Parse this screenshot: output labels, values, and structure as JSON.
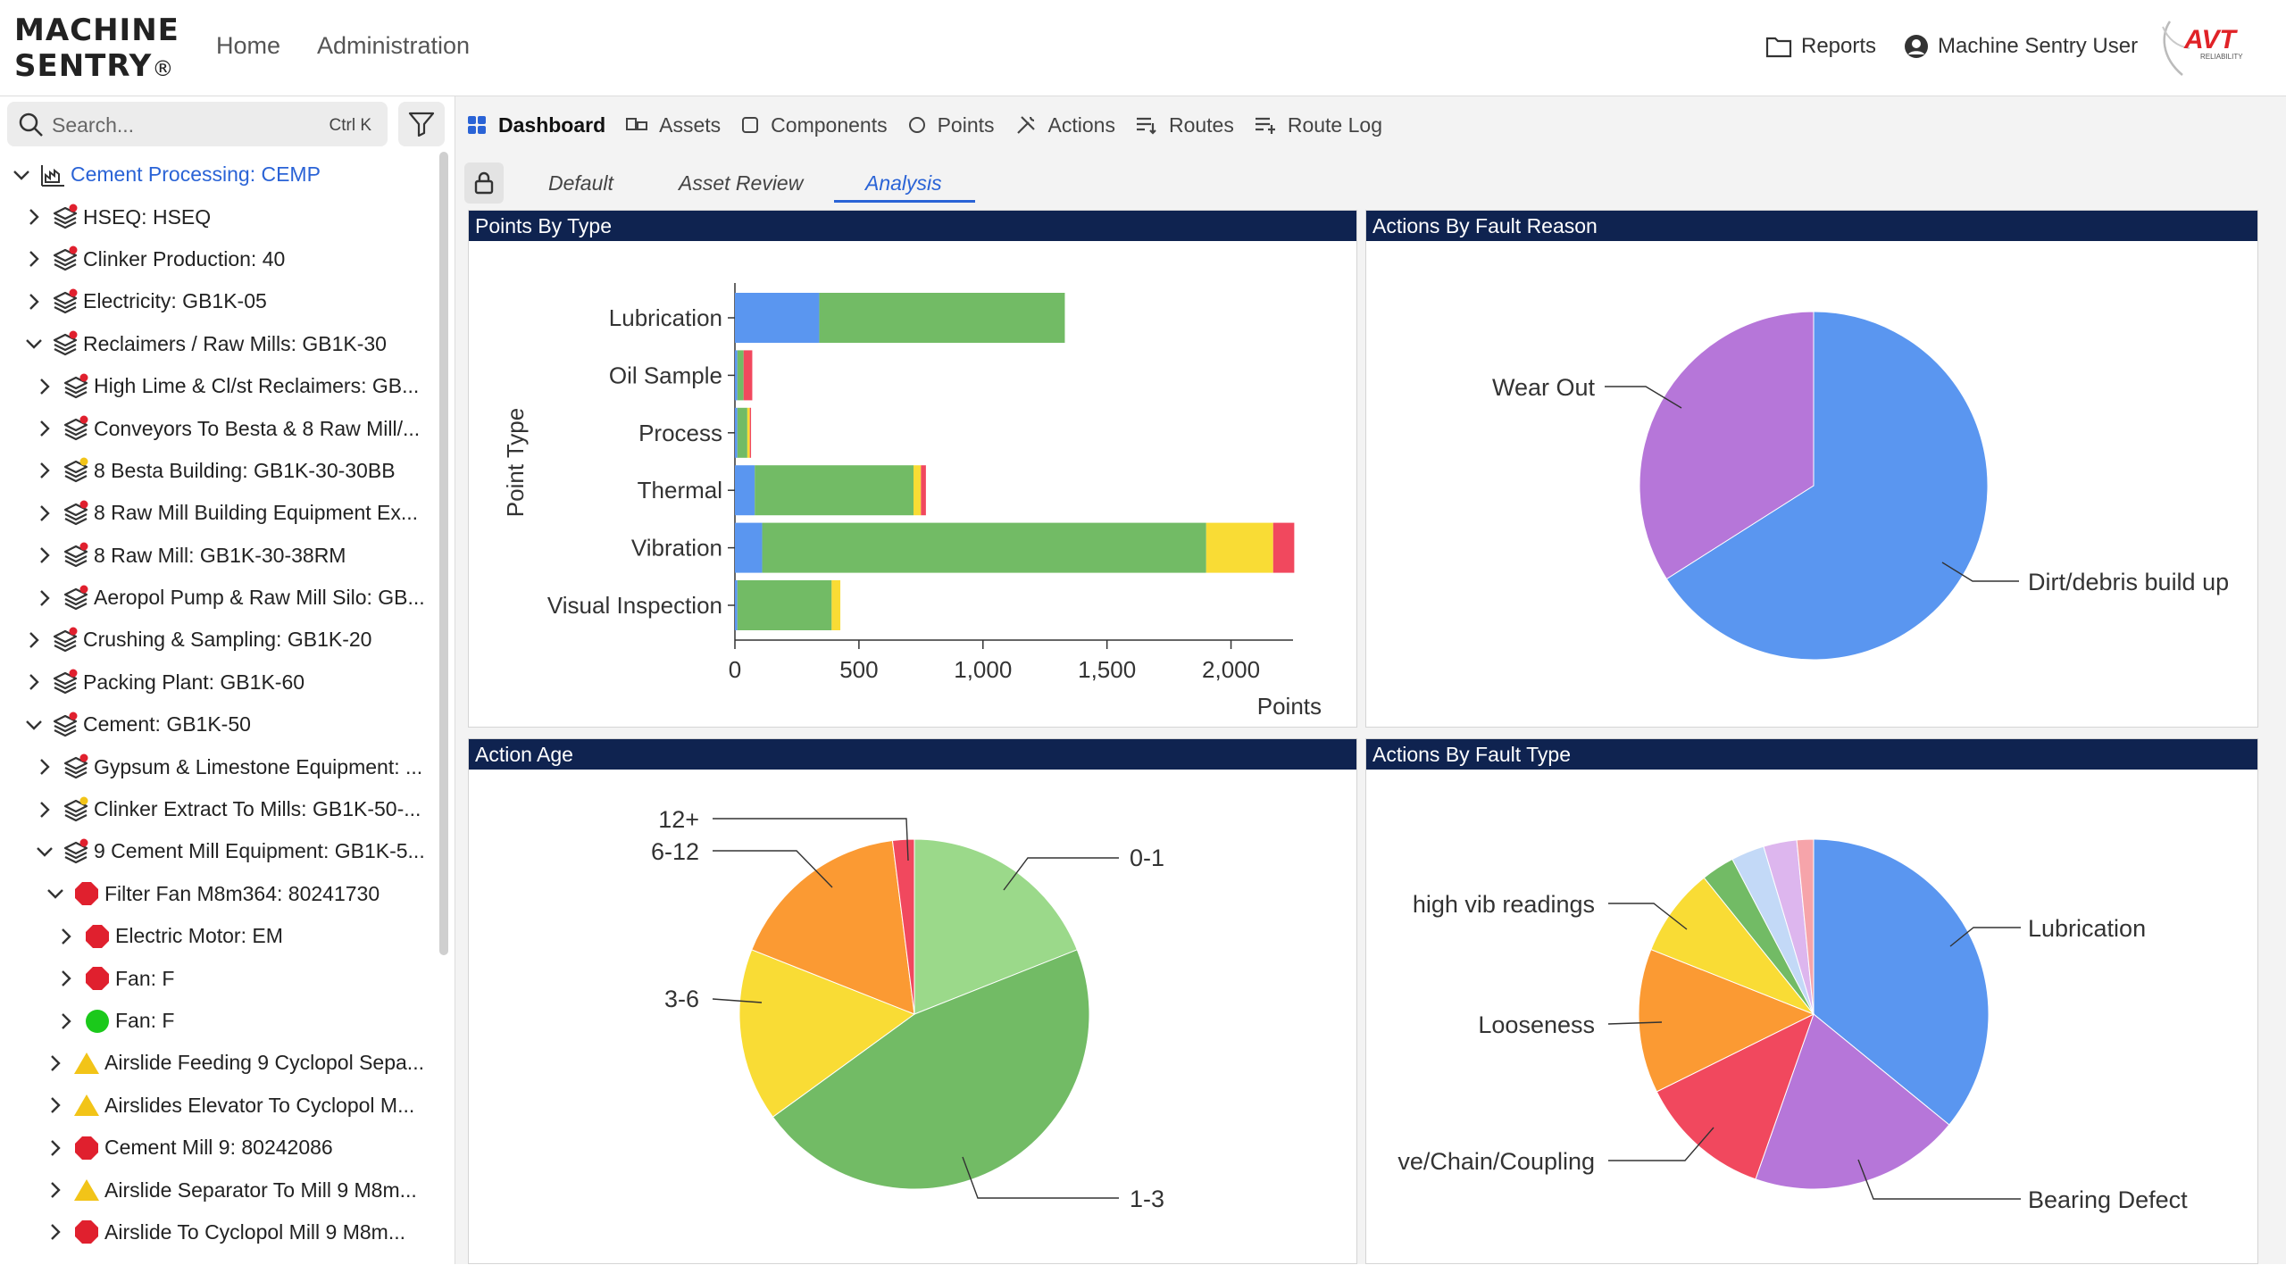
{
  "header": {
    "logo_line1": "MACHINE",
    "logo_line2": "SENTRY",
    "logo_reg": "®",
    "nav": [
      "Home",
      "Administration"
    ],
    "reports_label": "Reports",
    "user_label": "Machine Sentry User",
    "avt_logo": "AVT",
    "avt_sub": "RELIABILITY"
  },
  "sidebar": {
    "search_placeholder": "Search...",
    "search_shortcut": "Ctrl K",
    "tree": [
      {
        "label": "Cement Processing: CEMP",
        "level": 0,
        "expanded": true,
        "icon": "site-icon",
        "root": true
      },
      {
        "label": "HSEQ: HSEQ",
        "level": 1,
        "expanded": false,
        "icon": "layers-icon",
        "dot": "red"
      },
      {
        "label": "Clinker Production: 40",
        "level": 1,
        "expanded": false,
        "icon": "layers-icon",
        "dot": "red"
      },
      {
        "label": "Electricity: GB1K-05",
        "level": 1,
        "expanded": false,
        "icon": "layers-icon",
        "dot": "red"
      },
      {
        "label": "Reclaimers / Raw Mills: GB1K-30",
        "level": 1,
        "expanded": true,
        "icon": "layers-icon",
        "dot": "red"
      },
      {
        "label": "High Lime & Cl/st Reclaimers: GB...",
        "level": 2,
        "expanded": false,
        "icon": "layers-icon",
        "dot": "red"
      },
      {
        "label": "Conveyors To Besta & 8 Raw Mill/...",
        "level": 2,
        "expanded": false,
        "icon": "layers-icon",
        "dot": "red"
      },
      {
        "label": "8 Besta Building: GB1K-30-30BB",
        "level": 2,
        "expanded": false,
        "icon": "layers-icon",
        "dot": "yellow"
      },
      {
        "label": "8 Raw Mill Building Equipment Ex...",
        "level": 2,
        "expanded": false,
        "icon": "layers-icon",
        "dot": "red"
      },
      {
        "label": "8 Raw Mill: GB1K-30-38RM",
        "level": 2,
        "expanded": false,
        "icon": "layers-icon",
        "dot": "red"
      },
      {
        "label": "Aeropol Pump & Raw Mill Silo: GB...",
        "level": 2,
        "expanded": false,
        "icon": "layers-icon",
        "dot": "red"
      },
      {
        "label": "Crushing & Sampling: GB1K-20",
        "level": 1,
        "expanded": false,
        "icon": "layers-icon",
        "dot": "red"
      },
      {
        "label": "Packing Plant: GB1K-60",
        "level": 1,
        "expanded": false,
        "icon": "layers-icon",
        "dot": "red"
      },
      {
        "label": "Cement: GB1K-50",
        "level": 1,
        "expanded": true,
        "icon": "layers-icon",
        "dot": "red"
      },
      {
        "label": "Gypsum & Limestone Equipment: ...",
        "level": 2,
        "expanded": false,
        "icon": "layers-icon",
        "dot": "red"
      },
      {
        "label": "Clinker Extract To Mills: GB1K-50-...",
        "level": 2,
        "expanded": false,
        "icon": "layers-icon",
        "dot": "yellow"
      },
      {
        "label": "9 Cement Mill Equipment: GB1K-5...",
        "level": 2,
        "expanded": true,
        "icon": "layers-icon",
        "dot": "red"
      },
      {
        "label": "Filter Fan M8m364: 80241730",
        "level": 3,
        "expanded": true,
        "icon": "octagon-red-icon"
      },
      {
        "label": "Electric Motor: EM",
        "level": 4,
        "expanded": false,
        "icon": "octagon-red-icon"
      },
      {
        "label": "Fan: F",
        "level": 4,
        "expanded": false,
        "icon": "octagon-red-icon"
      },
      {
        "label": "Fan: F",
        "level": 4,
        "expanded": false,
        "icon": "circle-green-icon"
      },
      {
        "label": "Airslide Feeding 9 Cyclopol Sepa...",
        "level": 3,
        "expanded": false,
        "icon": "triangle-yellow-icon"
      },
      {
        "label": "Airslides Elevator To Cyclopol M...",
        "level": 3,
        "expanded": false,
        "icon": "triangle-yellow-icon"
      },
      {
        "label": "Cement Mill 9: 80242086",
        "level": 3,
        "expanded": false,
        "icon": "octagon-red-icon"
      },
      {
        "label": "Airslide Separator To Mill 9 M8m...",
        "level": 3,
        "expanded": false,
        "icon": "triangle-yellow-icon"
      },
      {
        "label": "Airslide To Cyclopol Mill 9 M8m...",
        "level": 3,
        "expanded": false,
        "icon": "octagon-red-icon"
      }
    ]
  },
  "tabs": [
    {
      "label": "Dashboard",
      "icon": "dashboard-icon",
      "active": true
    },
    {
      "label": "Assets",
      "icon": "assets-icon"
    },
    {
      "label": "Components",
      "icon": "components-icon"
    },
    {
      "label": "Points",
      "icon": "points-icon"
    },
    {
      "label": "Actions",
      "icon": "actions-icon"
    },
    {
      "label": "Routes",
      "icon": "routes-icon"
    },
    {
      "label": "Route Log",
      "icon": "route-log-icon"
    }
  ],
  "subtabs": [
    {
      "label": "Default"
    },
    {
      "label": "Asset Review"
    },
    {
      "label": "Analysis",
      "active": true
    }
  ],
  "colors": {
    "blue": "#5a96f0",
    "green": "#72bb65",
    "yellow": "#f9dc35",
    "red": "#f1485e",
    "purple": "#b676d9",
    "orange": "#fb9a33",
    "lightgreen": "#9bd98a",
    "lightblue": "#c3d9f7",
    "lavender": "#ddb6ee",
    "pink": "#f6a4aa",
    "navy": "#0f2350"
  },
  "panels": {
    "points_by_type": "Points By Type",
    "actions_by_fault_reason": "Actions By Fault Reason",
    "action_age": "Action Age",
    "actions_by_fault_type": "Actions By Fault Type"
  },
  "chart_data": [
    {
      "type": "bar",
      "orientation": "horizontal",
      "stacked": true,
      "xlabel": "Points",
      "ylabel": "Point Type",
      "categories": [
        "Lubrication",
        "Oil Sample",
        "Process",
        "Thermal",
        "Vibration",
        "Visual Inspection"
      ],
      "xlim": [
        0,
        2250
      ],
      "xticks": [
        0,
        500,
        1000,
        1500,
        2000
      ],
      "xtick_labels": [
        "0",
        "500",
        "1,000",
        "1,500",
        "2,000"
      ],
      "series": [
        {
          "values": [
            340,
            10,
            10,
            80,
            110,
            10
          ],
          "color": "#5a96f0"
        },
        {
          "values": [
            990,
            25,
            40,
            640,
            1790,
            380
          ],
          "color": "#72bb65"
        },
        {
          "values": [
            0,
            0,
            10,
            30,
            270,
            35
          ],
          "color": "#f9dc35"
        },
        {
          "values": [
            0,
            35,
            5,
            20,
            85,
            0
          ],
          "color": "#f1485e"
        }
      ]
    },
    {
      "type": "pie",
      "labels": [
        "Dirt/debris build up",
        "Wear Out"
      ],
      "values": [
        66,
        34
      ],
      "colors": [
        "#5a96f0",
        "#b676d9"
      ]
    },
    {
      "type": "pie",
      "labels": [
        "0-1",
        "1-3",
        "3-6",
        "6-12",
        "12+"
      ],
      "values": [
        19,
        46,
        16,
        17,
        2
      ],
      "colors": [
        "#9bd98a",
        "#72bb65",
        "#f9dc35",
        "#fb9a33",
        "#f1485e"
      ]
    },
    {
      "type": "pie",
      "labels": [
        "Lubrication",
        "Bearing Defect",
        "ve/Chain/Coupling",
        "Looseness",
        "high vib readings",
        "",
        "",
        "",
        ""
      ],
      "values": [
        35,
        19,
        12,
        13,
        8,
        3,
        3,
        3,
        1.5
      ],
      "colors": [
        "#5a96f0",
        "#b676d9",
        "#f1485e",
        "#fb9a33",
        "#f9dc35",
        "#72bb65",
        "#c3d9f7",
        "#ddb6ee",
        "#f6a4aa"
      ]
    }
  ]
}
